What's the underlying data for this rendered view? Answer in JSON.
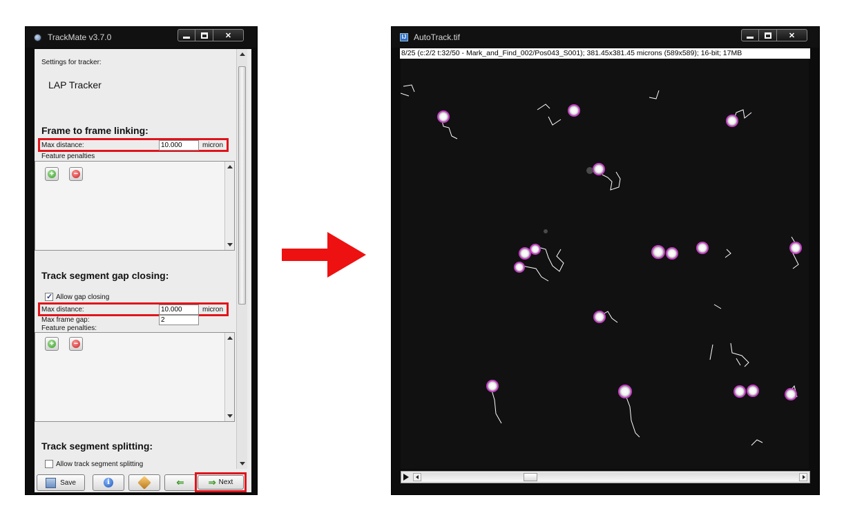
{
  "trackmate": {
    "title": "TrackMate v3.7.0",
    "settings_label": "Settings for tracker:",
    "tracker_name": "LAP Tracker",
    "frame_linking": {
      "heading": "Frame to frame linking:",
      "max_distance_label": "Max distance:",
      "max_distance_value": "10.000",
      "unit": "micron",
      "feature_penalties_label": "Feature penalties"
    },
    "gap_closing": {
      "heading": "Track segment gap closing:",
      "allow_label": "Allow gap closing",
      "allow_checked": true,
      "max_distance_label": "Max distance:",
      "max_distance_value": "10.000",
      "unit": "micron",
      "max_frame_gap_label": "Max frame gap:",
      "max_frame_gap_value": "2",
      "feature_penalties_label": "Feature penalties:"
    },
    "splitting": {
      "heading": "Track segment splitting:",
      "allow_label": "Allow track segment splitting",
      "allow_checked": false
    },
    "buttons": {
      "save": "Save",
      "next": "Next"
    }
  },
  "image_window": {
    "title": "AutoTrack.tif",
    "info": "8/25 (c:2/2 t:32/50 - Mark_and_Find_002/Pos043_S001); 381.45x381.45 microns (589x589); 16-bit; 17MB",
    "icon_text": "IJ",
    "scroll_fraction": 0.28
  },
  "colors": {
    "highlight_red": "#e0141b",
    "spot_magenta": "#c83cc8",
    "track_white": "#ffffff",
    "titlebar": "#111111"
  }
}
